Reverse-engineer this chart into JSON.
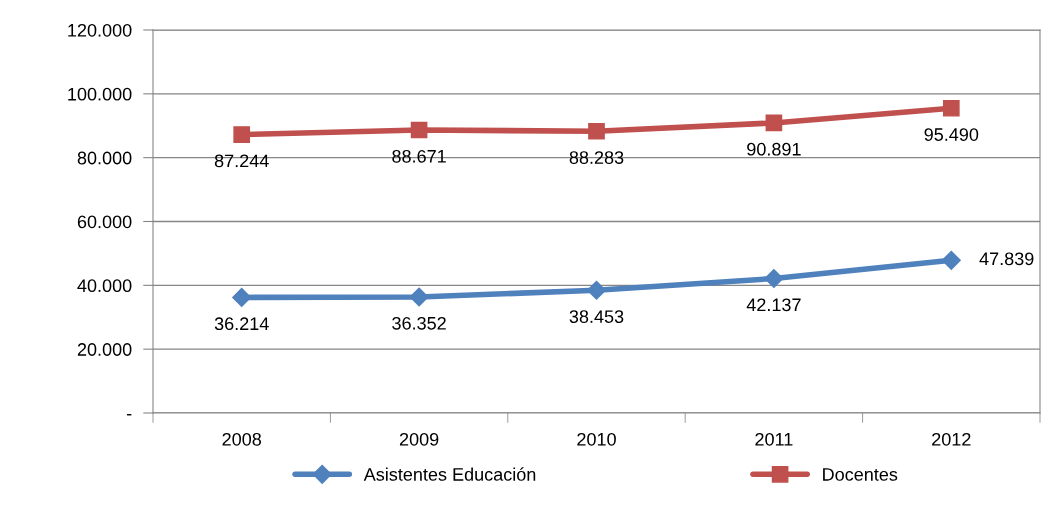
{
  "chart_data": {
    "type": "line",
    "categories": [
      "2008",
      "2009",
      "2010",
      "2011",
      "2012"
    ],
    "series": [
      {
        "name": "Asistentes Educación",
        "color": "#4f81bd",
        "marker": "diamond",
        "values": [
          36214,
          36352,
          38453,
          42137,
          47839
        ],
        "value_labels": [
          "36.214",
          "36.352",
          "38.453",
          "42.137",
          "47.839"
        ]
      },
      {
        "name": "Docentes",
        "color": "#c0504d",
        "marker": "square",
        "values": [
          87244,
          88671,
          88283,
          90891,
          95490
        ],
        "value_labels": [
          "87.244",
          "88.671",
          "88.283",
          "90.891",
          "95.490"
        ]
      }
    ],
    "ylim": [
      0,
      120000
    ],
    "yticks": [
      {
        "value": 0,
        "label": "-"
      },
      {
        "value": 20000,
        "label": "20.000"
      },
      {
        "value": 40000,
        "label": "40.000"
      },
      {
        "value": 60000,
        "label": "60.000"
      },
      {
        "value": 80000,
        "label": "80.000"
      },
      {
        "value": 100000,
        "label": "100.000"
      },
      {
        "value": 120000,
        "label": "120.000"
      }
    ],
    "grid": "y",
    "legend": "bottom",
    "line_style": "solid"
  }
}
